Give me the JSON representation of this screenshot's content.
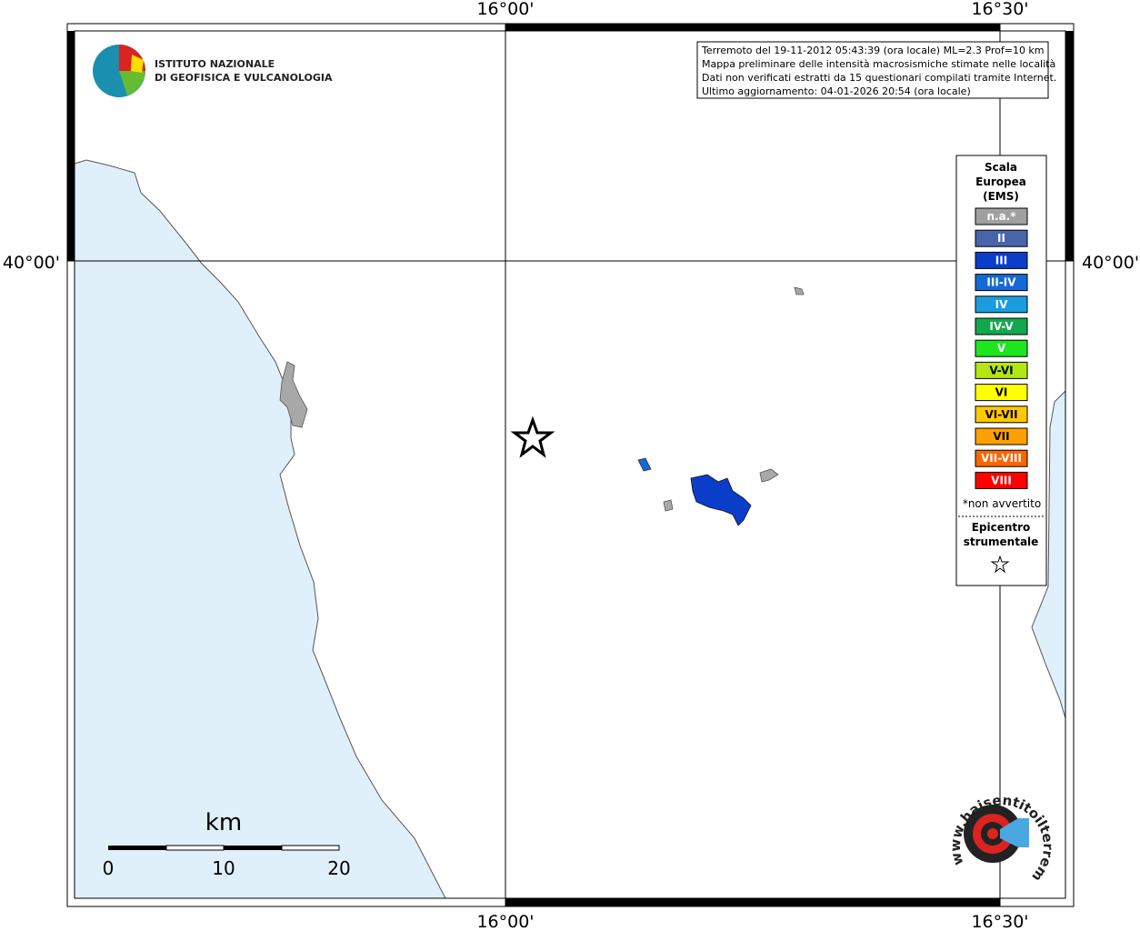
{
  "map": {
    "grid_labels": {
      "top": [
        "16°00'",
        "16°30'"
      ],
      "bottom": [
        "16°00'",
        "16°30'"
      ],
      "left": [
        "40°00'"
      ],
      "right": [
        "40°00'"
      ]
    },
    "logo": {
      "line1": "ISTITUTO NAZIONALE",
      "line2": "DI GEOFISICA E VULCANOLOGIA"
    },
    "info_box": [
      "Terremoto del 19-11-2012 05:43:39 (ora locale) ML=2.3 Prof=10 km",
      "Mappa preliminare delle intensità macrosismiche stimate nelle località",
      "Dati non verificati estratti da 15 questionari compilati tramite Internet.",
      "Ultimo aggiornamento: 04-01-2026 20:54 (ora locale)"
    ],
    "legend": {
      "title": [
        "Scala",
        "Europea",
        "(EMS)"
      ],
      "items": [
        {
          "label": "n.a.*",
          "color": "#a0a0a0"
        },
        {
          "label": "II",
          "color": "#4a64ab"
        },
        {
          "label": "III",
          "color": "#0a3ec8"
        },
        {
          "label": "III-IV",
          "color": "#1569d6"
        },
        {
          "label": "IV",
          "color": "#1a9de0"
        },
        {
          "label": "IV-V",
          "color": "#14a84e"
        },
        {
          "label": "V",
          "color": "#1ee61e"
        },
        {
          "label": "V-VI",
          "color": "#b4e614"
        },
        {
          "label": "VI",
          "color": "#ffff00"
        },
        {
          "label": "VI-VII",
          "color": "#ffc800"
        },
        {
          "label": "VII",
          "color": "#ffa000"
        },
        {
          "label": "VII-VIII",
          "color": "#ff6400"
        },
        {
          "label": "VIII",
          "color": "#ff0000"
        }
      ],
      "note": "*non avvertito",
      "epicenter": [
        "Epicentro",
        "strumentale"
      ]
    },
    "scale_bar": {
      "unit": "km",
      "ticks": [
        "0",
        "10",
        "20"
      ]
    },
    "site_logo": "www.haisentitoilterremoto.it"
  }
}
